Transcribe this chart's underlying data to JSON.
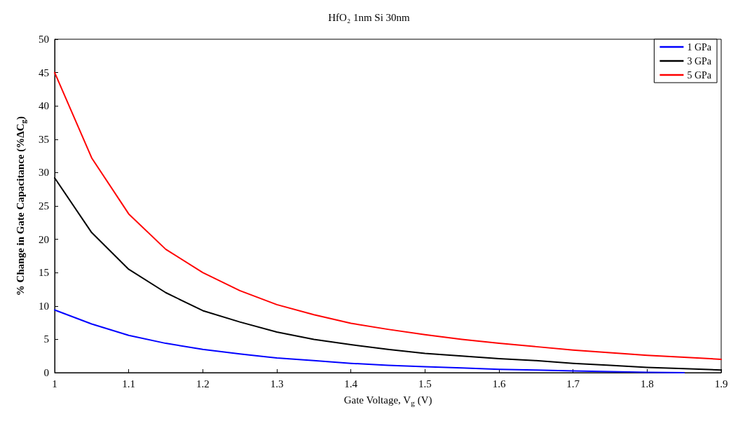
{
  "chart_data": {
    "type": "line",
    "title": "HfO₂ 1nm Si 30nm",
    "xlabel": "Gate Voltage, V$_{g}$ (V)",
    "ylabel": "% Change in Gate Capacitance (%ΔC$_{g}$)",
    "x": [
      1,
      1.05,
      1.1,
      1.15,
      1.2,
      1.25,
      1.3,
      1.35,
      1.4,
      1.45,
      1.5,
      1.55,
      1.6,
      1.65,
      1.7,
      1.75,
      1.8,
      1.85,
      1.9
    ],
    "series": [
      {
        "name": "1 GPa",
        "color": "#0000ff",
        "values": [
          9.4,
          7.3,
          5.6,
          4.4,
          3.5,
          2.8,
          2.2,
          1.8,
          1.4,
          1.1,
          0.9,
          0.7,
          0.5,
          0.4,
          0.25,
          0.15,
          0.05,
          0,
          null
        ]
      },
      {
        "name": "3 GPa",
        "color": "#000000",
        "values": [
          29.2,
          21,
          15.5,
          12,
          9.3,
          7.6,
          6.1,
          5,
          4.2,
          3.5,
          2.9,
          2.5,
          2.1,
          1.8,
          1.4,
          1.1,
          0.8,
          0.6,
          0.4
        ]
      },
      {
        "name": "5 GPa",
        "color": "#ff0000",
        "values": [
          45,
          32.2,
          23.8,
          18.5,
          15,
          12.3,
          10.2,
          8.7,
          7.4,
          6.5,
          5.7,
          5,
          4.4,
          3.9,
          3.4,
          3,
          2.6,
          2.3,
          2
        ]
      }
    ],
    "xlim": [
      1,
      1.9
    ],
    "xticks": [
      1,
      1.1,
      1.2,
      1.3,
      1.4,
      1.5,
      1.6,
      1.7,
      1.8,
      1.9
    ],
    "ylim": [
      0,
      50
    ],
    "yticks": [
      0,
      5,
      10,
      15,
      20,
      25,
      30,
      35,
      40,
      45,
      50
    ],
    "grid": false,
    "legend": "top right",
    "marker": "none",
    "line_style": "solid"
  }
}
